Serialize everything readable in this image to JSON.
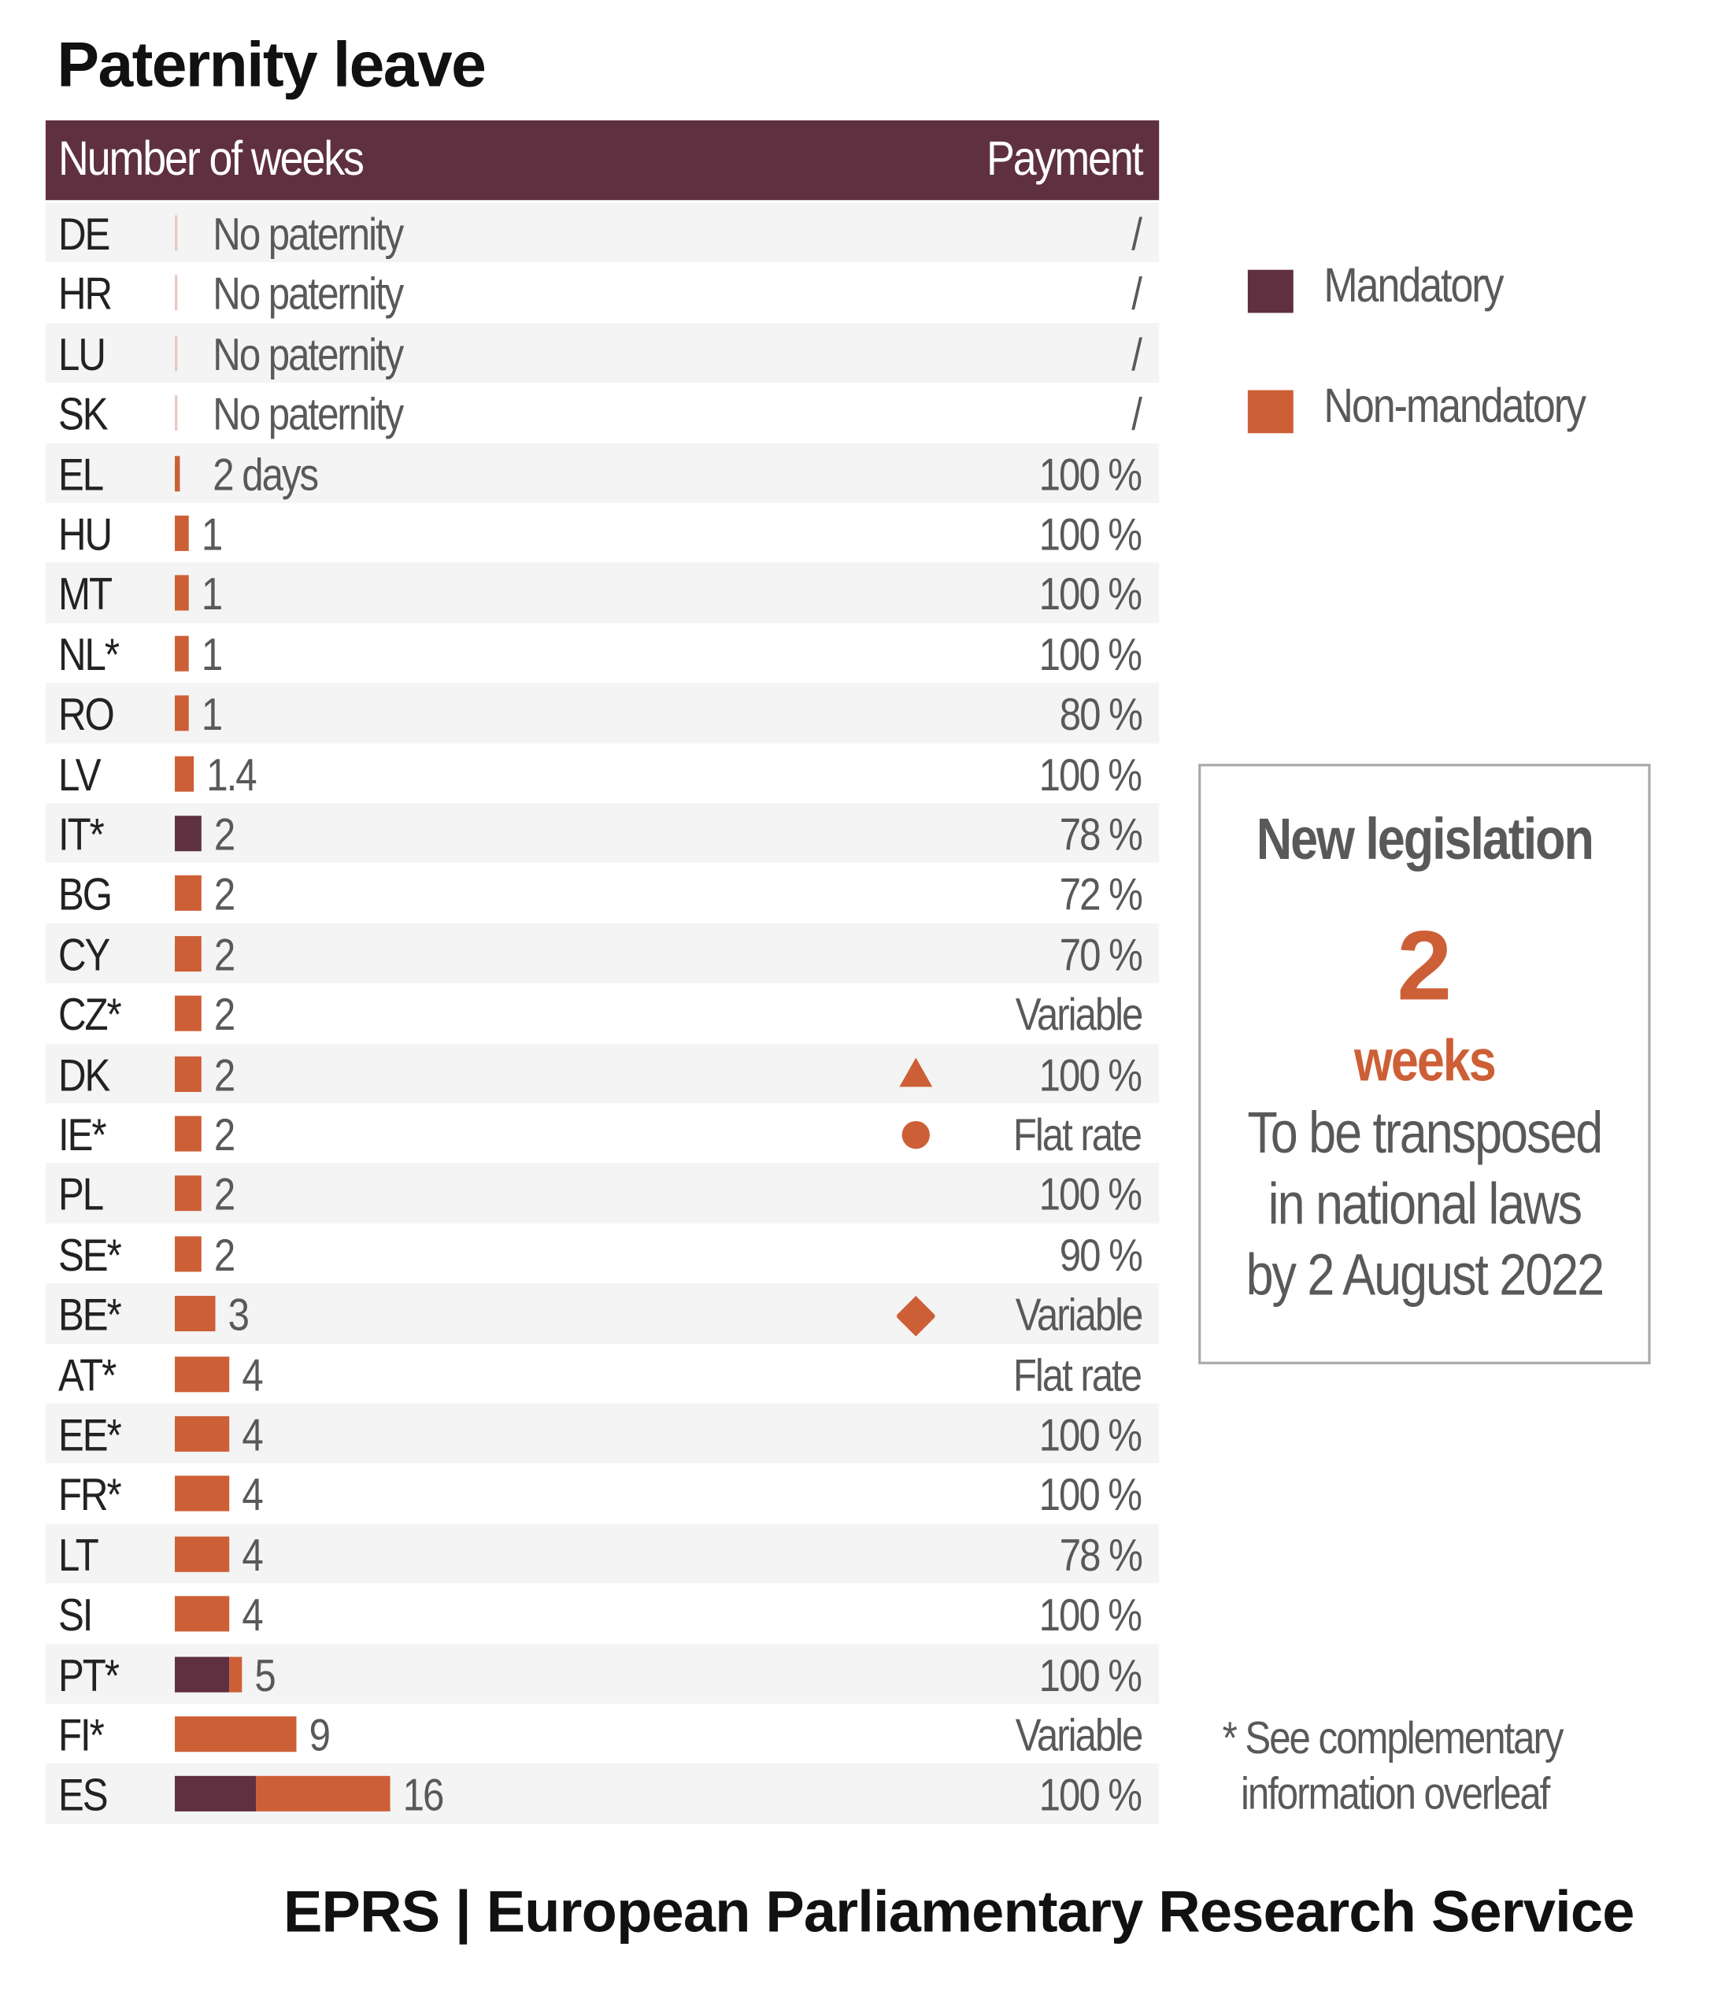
{
  "chart_data": {
    "type": "bar",
    "stacked": true,
    "orientation": "horizontal",
    "title": "Paternity leave",
    "column_headers": {
      "weeks": "Number of weeks",
      "payment": "Payment"
    },
    "legend": [
      {
        "name": "Mandatory",
        "color": "#5f3040"
      },
      {
        "name": "Non-mandatory",
        "color": "#cd5f37"
      }
    ],
    "legend_position": "right",
    "rows": [
      {
        "country": "DE",
        "mandatory": 0,
        "non_mandatory": 0,
        "label": "No paternity",
        "payment": "/"
      },
      {
        "country": "HR",
        "mandatory": 0,
        "non_mandatory": 0,
        "label": "No paternity",
        "payment": "/"
      },
      {
        "country": "LU",
        "mandatory": 0,
        "non_mandatory": 0,
        "label": "No paternity",
        "payment": "/"
      },
      {
        "country": "SK",
        "mandatory": 0,
        "non_mandatory": 0,
        "label": "No paternity",
        "payment": "/"
      },
      {
        "country": "EL",
        "mandatory": 0,
        "non_mandatory": 0.4,
        "label": "2 days",
        "payment": "100 %"
      },
      {
        "country": "HU",
        "mandatory": 0,
        "non_mandatory": 1,
        "label": "1",
        "payment": "100 %"
      },
      {
        "country": "MT",
        "mandatory": 0,
        "non_mandatory": 1,
        "label": "1",
        "payment": "100 %"
      },
      {
        "country": "NL*",
        "mandatory": 0,
        "non_mandatory": 1,
        "label": "1",
        "payment": "100 %"
      },
      {
        "country": "RO",
        "mandatory": 0,
        "non_mandatory": 1,
        "label": "1",
        "payment": "80 %"
      },
      {
        "country": "LV",
        "mandatory": 0,
        "non_mandatory": 1.4,
        "label": "1.4",
        "payment": "100 %"
      },
      {
        "country": "IT*",
        "mandatory": 2,
        "non_mandatory": 0,
        "label": "2",
        "payment": "78 %"
      },
      {
        "country": "BG",
        "mandatory": 0,
        "non_mandatory": 2,
        "label": "2",
        "payment": "72 %"
      },
      {
        "country": "CY",
        "mandatory": 0,
        "non_mandatory": 2,
        "label": "2",
        "payment": "70 %"
      },
      {
        "country": "CZ*",
        "mandatory": 0,
        "non_mandatory": 2,
        "label": "2",
        "payment": "Variable"
      },
      {
        "country": "DK",
        "mandatory": 0,
        "non_mandatory": 2,
        "label": "2",
        "payment": "100 %",
        "marker": "triangle"
      },
      {
        "country": "IE*",
        "mandatory": 0,
        "non_mandatory": 2,
        "label": "2",
        "payment": "Flat rate",
        "marker": "circle"
      },
      {
        "country": "PL",
        "mandatory": 0,
        "non_mandatory": 2,
        "label": "2",
        "payment": "100 %"
      },
      {
        "country": "SE*",
        "mandatory": 0,
        "non_mandatory": 2,
        "label": "2",
        "payment": "90 %"
      },
      {
        "country": "BE*",
        "mandatory": 0,
        "non_mandatory": 3,
        "label": "3",
        "payment": "Variable",
        "marker": "diamond"
      },
      {
        "country": "AT*",
        "mandatory": 0,
        "non_mandatory": 4,
        "label": "4",
        "payment": "Flat rate"
      },
      {
        "country": "EE*",
        "mandatory": 0,
        "non_mandatory": 4,
        "label": "4",
        "payment": "100 %"
      },
      {
        "country": "FR*",
        "mandatory": 0,
        "non_mandatory": 4,
        "label": "4",
        "payment": "100 %"
      },
      {
        "country": "LT",
        "mandatory": 0,
        "non_mandatory": 4,
        "label": "4",
        "payment": "78 %"
      },
      {
        "country": "SI",
        "mandatory": 0,
        "non_mandatory": 4,
        "label": "4",
        "payment": "100 %"
      },
      {
        "country": "PT*",
        "mandatory": 4,
        "non_mandatory": 1,
        "label": "5",
        "payment": "100 %"
      },
      {
        "country": "FI*",
        "mandatory": 0,
        "non_mandatory": 9,
        "label": "9",
        "payment": "Variable"
      },
      {
        "country": "ES",
        "mandatory": 6,
        "non_mandatory": 10,
        "label": "16",
        "payment": "100 %"
      }
    ],
    "xlim": [
      0,
      16
    ]
  },
  "callout": {
    "heading": "New legislation",
    "number": "2",
    "unit": "weeks",
    "lines": [
      "To be transposed",
      "in national laws",
      "by 2 August 2022"
    ]
  },
  "footnote": "* See complementary\n  information overleaf",
  "source": "EPRS | European Parliamentary Research Service",
  "colors": {
    "mandatory": "#5f3040",
    "non_mandatory": "#cd5f37",
    "accent_text": "#cd5f37"
  }
}
